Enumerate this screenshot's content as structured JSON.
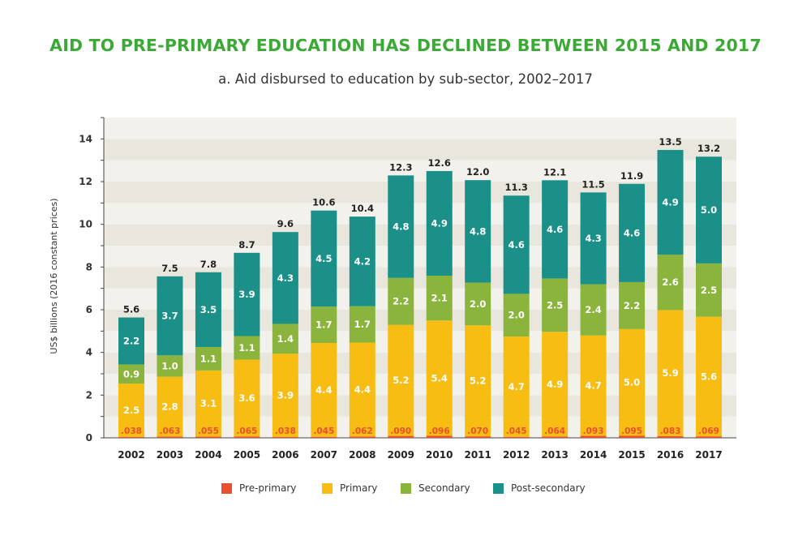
{
  "title": "AID TO PRE-PRIMARY EDUCATION HAS DECLINED BETWEEN 2015 AND 2017",
  "subtitle": "a. Aid disbursed to education by sub-sector, 2002–2017",
  "colors": {
    "title": "#3aaa35",
    "pre_primary": "#e8502f",
    "primary": "#f7bd12",
    "secondary": "#8ab43c",
    "post_secondary": "#1a9088",
    "band_light": "#f3f1ec",
    "band_dark": "#e9e6dd"
  },
  "chart_data": {
    "type": "bar",
    "stacked": true,
    "title": "AID TO PRE-PRIMARY EDUCATION HAS DECLINED BETWEEN 2015 AND 2017",
    "subtitle": "a. Aid disbursed to education by sub-sector, 2002–2017",
    "xlabel": "",
    "ylabel": "US$ billions (2016 constant prices)",
    "ylim": [
      0,
      15
    ],
    "yticks": [
      0,
      2,
      4,
      6,
      8,
      10,
      12,
      14
    ],
    "grid": "alternating horizontal bands",
    "legend_position": "bottom",
    "categories": [
      "2002",
      "2003",
      "2004",
      "2005",
      "2006",
      "2007",
      "2008",
      "2009",
      "2010",
      "2011",
      "2012",
      "2013",
      "2014",
      "2015",
      "2016",
      "2017"
    ],
    "series": [
      {
        "name": "Pre-primary",
        "color": "#e8502f",
        "values": [
          0.038,
          0.063,
          0.055,
          0.065,
          0.038,
          0.045,
          0.062,
          0.09,
          0.096,
          0.07,
          0.045,
          0.064,
          0.093,
          0.095,
          0.083,
          0.069
        ],
        "labels": [
          ".038",
          ".063",
          ".055",
          ".065",
          ".038",
          ".045",
          ".062",
          ".090",
          ".096",
          ".070",
          ".045",
          ".064",
          ".093",
          ".095",
          ".083",
          ".069"
        ]
      },
      {
        "name": "Primary",
        "color": "#f7bd12",
        "values": [
          2.5,
          2.8,
          3.1,
          3.6,
          3.9,
          4.4,
          4.4,
          5.2,
          5.4,
          5.2,
          4.7,
          4.9,
          4.7,
          5.0,
          5.9,
          5.6
        ],
        "labels": [
          "2.5",
          "2.8",
          "3.1",
          "3.6",
          "3.9",
          "4.4",
          "4.4",
          "5.2",
          "5.4",
          "5.2",
          "4.7",
          "4.9",
          "4.7",
          "5.0",
          "5.9",
          "5.6"
        ]
      },
      {
        "name": "Secondary",
        "color": "#8ab43c",
        "values": [
          0.9,
          1.0,
          1.1,
          1.1,
          1.4,
          1.7,
          1.7,
          2.2,
          2.1,
          2.0,
          2.0,
          2.5,
          2.4,
          2.2,
          2.6,
          2.5
        ],
        "labels": [
          "0.9",
          "1.0",
          "1.1",
          "1.1",
          "1.4",
          "1.7",
          "1.7",
          "2.2",
          "2.1",
          "2.0",
          "2.0",
          "2.5",
          "2.4",
          "2.2",
          "2.6",
          "2.5"
        ]
      },
      {
        "name": "Post-secondary",
        "color": "#1a9088",
        "values": [
          2.2,
          3.7,
          3.5,
          3.9,
          4.3,
          4.5,
          4.2,
          4.8,
          4.9,
          4.8,
          4.6,
          4.6,
          4.3,
          4.6,
          4.9,
          5.0
        ],
        "labels": [
          "2.2",
          "3.7",
          "3.5",
          "3.9",
          "4.3",
          "4.5",
          "4.2",
          "4.8",
          "4.9",
          "4.8",
          "4.6",
          "4.6",
          "4.3",
          "4.6",
          "4.9",
          "5.0"
        ]
      }
    ],
    "totals": [
      5.6,
      7.5,
      7.8,
      8.7,
      9.6,
      10.6,
      10.4,
      12.3,
      12.6,
      12.0,
      11.3,
      12.1,
      11.5,
      11.9,
      13.5,
      13.2
    ],
    "total_labels": [
      "5.6",
      "7.5",
      "7.8",
      "8.7",
      "9.6",
      "10.6",
      "10.4",
      "12.3",
      "12.6",
      "12.0",
      "11.3",
      "12.1",
      "11.5",
      "11.9",
      "13.5",
      "13.2"
    ]
  }
}
